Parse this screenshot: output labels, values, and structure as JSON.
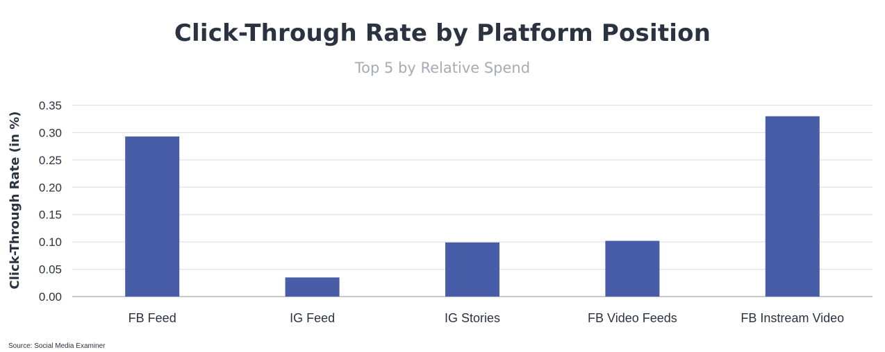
{
  "header": {
    "title": "Click-Through Rate by Platform Position",
    "subtitle": "Top 5 by Relative Spend"
  },
  "footer": {
    "source": "Source: Social Media Examiner"
  },
  "colors": {
    "bar": "#485da8",
    "grid": "#d9dbe0",
    "axis": "#c6c9cf",
    "text": "#2b3340",
    "subtitle": "#a6abb6"
  },
  "chart_data": {
    "type": "bar",
    "title": "Click-Through Rate by Platform Position",
    "subtitle": "Top 5 by Relative Spend",
    "xlabel": "",
    "ylabel": "Click-Through Rate (in %)",
    "categories": [
      "FB Feed",
      "IG Feed",
      "IG Stories",
      "FB Video Feeds",
      "FB Instream Video"
    ],
    "values": [
      0.293,
      0.035,
      0.099,
      0.102,
      0.33
    ],
    "ylim": [
      0,
      0.35
    ],
    "yticks": [
      "0.00",
      "0.05",
      "0.10",
      "0.15",
      "0.20",
      "0.25",
      "0.30",
      "0.35"
    ],
    "grid": true,
    "legend": "none"
  }
}
